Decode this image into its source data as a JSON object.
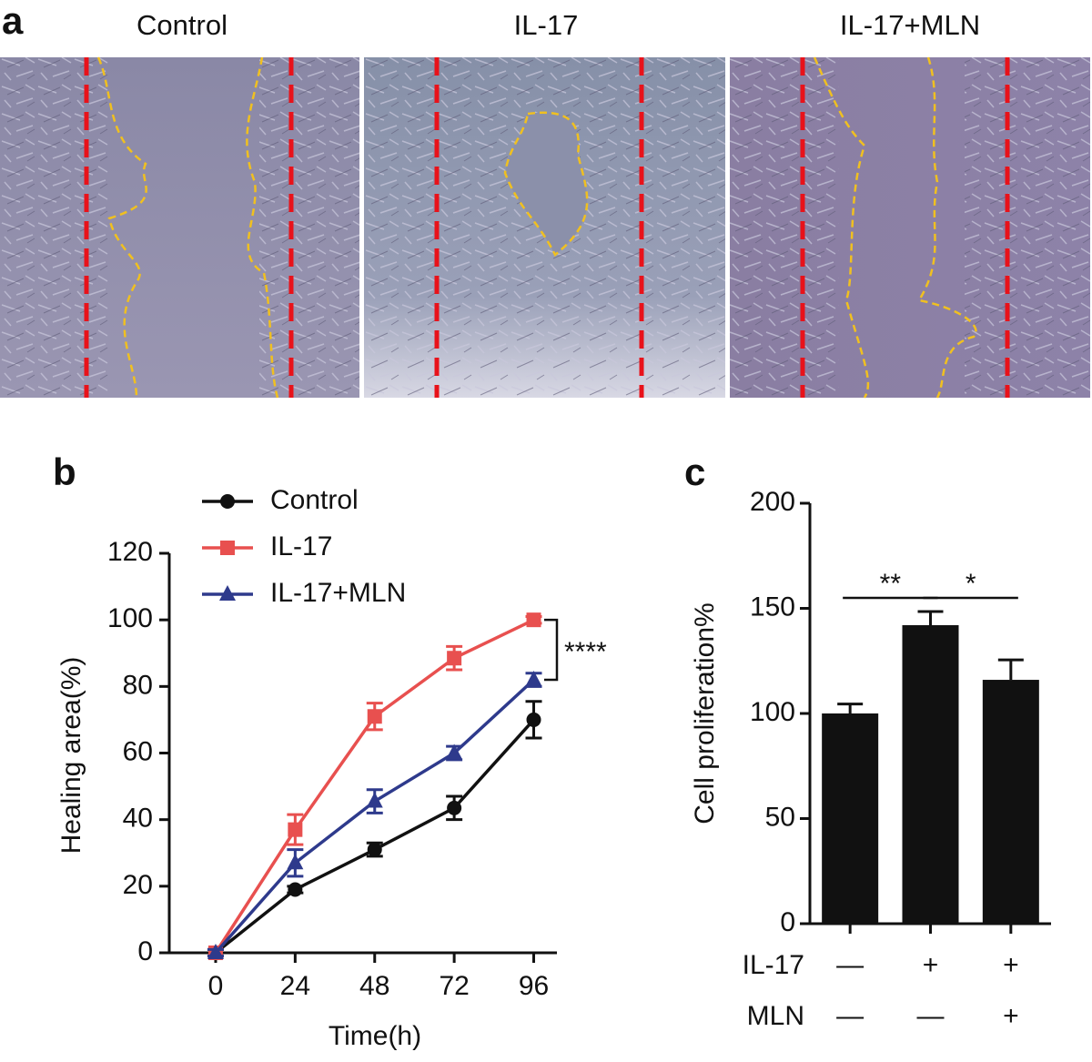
{
  "panel_a": {
    "label": "a",
    "titles": [
      "Control",
      "IL-17",
      "IL-17+MLN"
    ]
  },
  "chart_data": [
    {
      "type": "line",
      "label": "b",
      "x_label": "Time(h)",
      "y_label": "Healing area(%)",
      "x": [
        0,
        24,
        48,
        72,
        96
      ],
      "xlim": [
        -14,
        103
      ],
      "xticks": [
        0,
        24,
        48,
        72,
        96
      ],
      "ylim": [
        0,
        120
      ],
      "yticks": [
        0,
        20,
        40,
        60,
        80,
        100,
        120
      ],
      "legend": "top-left",
      "annotation": "****",
      "series": [
        {
          "name": "Control",
          "color": "#111111",
          "marker": "circle",
          "values": [
            0,
            19,
            31,
            43.5,
            70
          ],
          "errors": [
            1,
            1,
            2,
            3.5,
            5.5
          ]
        },
        {
          "name": "IL-17",
          "color": "#e8504f",
          "marker": "square",
          "values": [
            0,
            37,
            71,
            88.5,
            100
          ],
          "errors": [
            1,
            4.5,
            4,
            3.5,
            1
          ]
        },
        {
          "name": "IL-17+MLN",
          "color": "#2e3a8c",
          "marker": "triangle",
          "values": [
            0,
            27,
            45.5,
            60,
            82
          ],
          "errors": [
            1,
            4,
            3.5,
            2,
            2
          ]
        }
      ]
    },
    {
      "type": "bar",
      "label": "c",
      "y_label": "Cell proliferation%",
      "values": [
        100,
        142,
        116
      ],
      "errors": [
        4.5,
        6.5,
        9.5
      ],
      "color": "#111111",
      "ylim": [
        0,
        200
      ],
      "yticks": [
        0,
        50,
        100,
        150,
        200
      ],
      "conditions": [
        {
          "name": "IL-17",
          "labels": [
            "—",
            "+",
            "+"
          ]
        },
        {
          "name": "MLN",
          "labels": [
            "—",
            "—",
            "+"
          ]
        }
      ],
      "significance": [
        {
          "pair": [
            0,
            1
          ],
          "label": "**"
        },
        {
          "pair": [
            1,
            2
          ],
          "label": "*"
        }
      ]
    }
  ]
}
